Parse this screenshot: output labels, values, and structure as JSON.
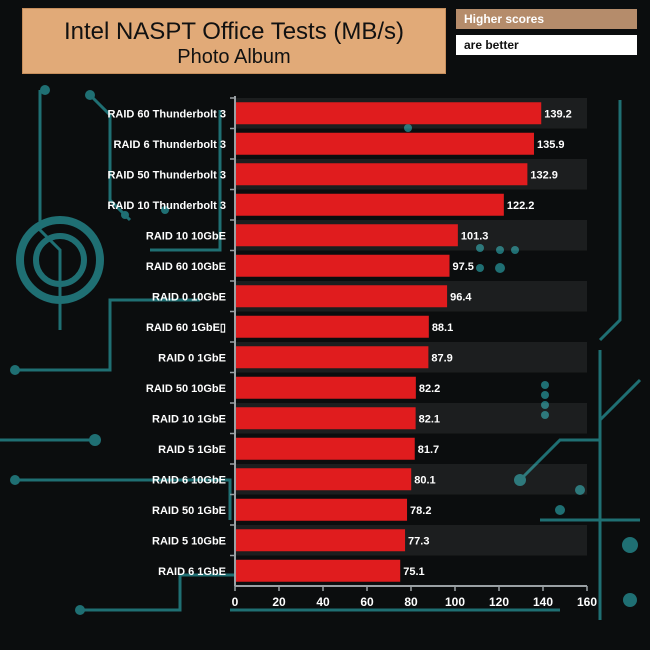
{
  "header": {
    "title": "Intel NASPT Office Tests (MB/s)",
    "subtitle": "Photo Album",
    "badge_top": "Higher scores",
    "badge_bottom": "are better"
  },
  "colors": {
    "bar": "#e01c1e",
    "background": "#0b0d0e",
    "circuit": "#1f6f73",
    "title_box": "#e1aa78"
  },
  "chart_data": {
    "type": "bar",
    "orientation": "horizontal",
    "title": "Intel NASPT Office Tests (MB/s)",
    "subtitle": "Photo Album",
    "categories": [
      "RAID 60 Thunderbolt 3",
      "RAID 6 Thunderbolt 3",
      "RAID 50 Thunderbolt 3",
      "RAID 10 Thunderbolt 3",
      "RAID 10 10GbE",
      "RAID 60 10GbE",
      "RAID 0 10GbE",
      "RAID 60 1GbE▯",
      "RAID 0 1GbE",
      "RAID 50 10GbE",
      "RAID 10 1GbE",
      "RAID 5 1GbE",
      "RAID 6 10GbE",
      "RAID 50 1GbE",
      "RAID 5 10GbE",
      "RAID 6 1GbE"
    ],
    "values": [
      139.2,
      135.9,
      132.9,
      122.2,
      101.3,
      97.5,
      96.4,
      88.1,
      87.9,
      82.2,
      82.1,
      81.7,
      80.1,
      78.2,
      77.3,
      75.1
    ],
    "value_labels": [
      "139.2",
      "135.9",
      "132.9",
      "122.2",
      "101.3",
      "97.5",
      "96.4",
      "88.1",
      "87.9",
      "82.2",
      "82.1",
      "81.7",
      "80.1",
      "78.2",
      "77.3",
      "75.1"
    ],
    "xlim": [
      0,
      160
    ],
    "xticks": [
      0,
      20,
      40,
      60,
      80,
      100,
      120,
      140,
      160
    ],
    "xtick_labels": [
      "0",
      "20",
      "40",
      "60",
      "80",
      "100",
      "120",
      "140",
      "160"
    ],
    "grid": false,
    "legend": "none"
  }
}
